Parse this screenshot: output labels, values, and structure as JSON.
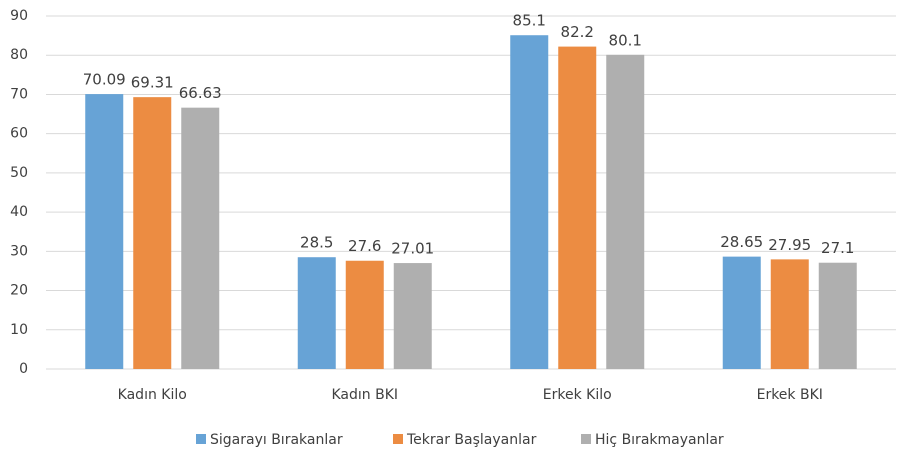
{
  "chart_data": {
    "type": "bar",
    "categories": [
      "Kadın Kilo",
      "Kadın BKI",
      "Erkek Kilo",
      "Erkek BKI"
    ],
    "series": [
      {
        "name": "Sigarayı Bırakanlar",
        "color": "#67a3d6",
        "values": [
          70.09,
          28.5,
          85.1,
          28.65
        ]
      },
      {
        "name": "Tekrar Başlayanlar",
        "color": "#ec8c42",
        "values": [
          69.31,
          27.6,
          82.2,
          27.95
        ]
      },
      {
        "name": "Hiç Bırakmayanlar",
        "color": "#afafaf",
        "values": [
          66.63,
          27.01,
          80.1,
          27.1
        ]
      }
    ],
    "ylim": [
      0,
      90
    ],
    "yticks": [
      0,
      10,
      20,
      30,
      40,
      50,
      60,
      70,
      80,
      90
    ],
    "grid": true,
    "legend": "bottom"
  }
}
